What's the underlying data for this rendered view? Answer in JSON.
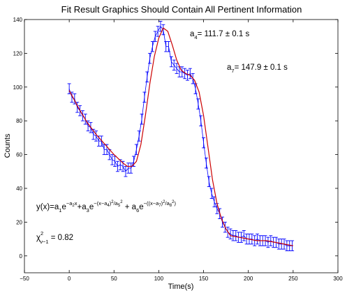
{
  "chart_data": {
    "type": "scatter",
    "title": "Fit Result Graphics Should Contain All Pertinent Information",
    "xlabel": "Time(s)",
    "ylabel": "Counts",
    "xlim": [
      -50,
      300
    ],
    "ylim": [
      -10,
      140
    ],
    "xticks": [
      "−50",
      "0",
      "50",
      "100",
      "150",
      "200",
      "250",
      "300"
    ],
    "yticks": [
      "0",
      "20",
      "40",
      "60",
      "80",
      "100",
      "120",
      "140"
    ],
    "grid": false,
    "legend": "none",
    "series": [
      {
        "kind": "data-with-errorbars",
        "color": "#0000ff",
        "x": [
          0,
          3,
          6,
          9,
          12,
          15,
          18,
          21,
          24,
          27,
          30,
          33,
          36,
          39,
          42,
          45,
          48,
          51,
          54,
          57,
          60,
          63,
          66,
          69,
          72,
          75,
          78,
          81,
          84,
          87,
          90,
          93,
          96,
          99,
          102,
          105,
          108,
          111,
          114,
          117,
          120,
          123,
          126,
          129,
          132,
          135,
          138,
          141,
          144,
          147,
          150,
          153,
          156,
          159,
          162,
          165,
          168,
          171,
          174,
          177,
          180,
          183,
          186,
          189,
          192,
          195,
          198,
          201,
          204,
          207,
          210,
          213,
          216,
          219,
          222,
          225,
          228,
          231,
          234,
          237,
          240,
          243,
          246,
          249
        ],
        "y": [
          99,
          94,
          93,
          88,
          86,
          83,
          81,
          77,
          76,
          72,
          71,
          68,
          68,
          63,
          63,
          60,
          57,
          56,
          53,
          54,
          53,
          50,
          52,
          52,
          56,
          63,
          71,
          81,
          94,
          106,
          117,
          124,
          130,
          133,
          136,
          134,
          124,
          124,
          115,
          113,
          111,
          109,
          109,
          108,
          107,
          108,
          105,
          99,
          90,
          80,
          67,
          55,
          44,
          37,
          32,
          28,
          25,
          20,
          17,
          14,
          13,
          12,
          12,
          11,
          11,
          12,
          10,
          10,
          10,
          9,
          10,
          9,
          9,
          9,
          8,
          9,
          8,
          8,
          7,
          7,
          7,
          6,
          6,
          6
        ],
        "yerr": 3
      },
      {
        "kind": "fit",
        "color": "#cc0000",
        "x": [
          0,
          10,
          20,
          30,
          40,
          50,
          60,
          65,
          70,
          75,
          80,
          85,
          90,
          95,
          100,
          105,
          110,
          115,
          120,
          125,
          130,
          135,
          140,
          145,
          150,
          155,
          160,
          165,
          170,
          175,
          180,
          190,
          200,
          210,
          220,
          230,
          240,
          250
        ],
        "y": [
          98,
          88,
          79,
          72,
          66,
          60,
          55,
          53,
          53,
          56,
          66,
          83,
          102,
          118,
          129,
          135,
          133,
          125,
          116,
          110,
          108,
          107,
          104,
          97,
          83,
          64,
          45,
          31,
          22,
          16,
          12,
          11,
          10,
          9,
          9,
          8,
          7,
          6
        ]
      }
    ],
    "annotations": {
      "a4_sym": "a",
      "a4_idx": "4",
      "a4_val": "= 111.7 ± 0.1 s",
      "a7_sym": "a",
      "a7_idx": "7",
      "a7_val": "= 147.9 ± 0.1 s",
      "chi_sym": "χ",
      "chi_sup": "2",
      "chi_sub": "ν−1",
      "chi_val": " = 0.82",
      "model_lead": "y(x)=a",
      "model_a1": "1",
      "model_e1": "e",
      "model_exp1": "−a",
      "model_exp1_idx": "2",
      "model_exp1_x": "x",
      "model_plus1": "+a",
      "model_a3": "3",
      "model_e2": "e",
      "model_exp2": "−(x−a",
      "model_exp2_i4": "4",
      "model_exp2_mid": ")",
      "model_exp2_sq": "2",
      "model_exp2_div": "/a",
      "model_exp2_i5": "5",
      "model_exp2_sq2": "2",
      "model_plus2": " + a",
      "model_a6": "6",
      "model_e3": "e",
      "model_exp3": "−((x−a",
      "model_exp3_i7": "7",
      "model_exp3_mid": ")",
      "model_exp3_sq": "2",
      "model_exp3_div": "/a",
      "model_exp3_i8": "8",
      "model_exp3_sq2": "2",
      "model_exp3_end": ")"
    }
  }
}
